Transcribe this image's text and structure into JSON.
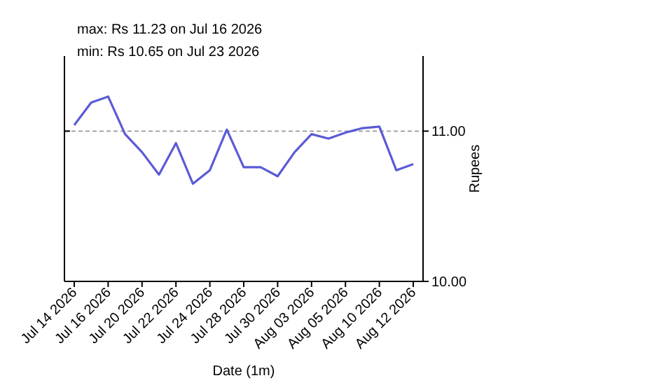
{
  "chart_data": {
    "type": "line",
    "title": "max: Rs 11.23 on Jul 16 2026",
    "subtitle": "min: Rs 10.65 on Jul 23 2026",
    "xlabel": "Date (1m)",
    "ylabel": "Rupees",
    "categories": [
      "Jul 14 2026",
      null,
      "Jul 16 2026",
      null,
      "Jul 20 2026",
      null,
      "Jul 22 2026",
      null,
      "Jul 24 2026",
      null,
      "Jul 28 2026",
      null,
      "Jul 30 2026",
      null,
      "Aug 03 2026",
      null,
      "Aug 05 2026",
      null,
      "Aug 10 2026",
      null,
      "Aug 12 2026"
    ],
    "series": [
      {
        "color": "#5b5bd6",
        "values": [
          11.04,
          11.19,
          11.23,
          10.98,
          10.86,
          10.71,
          10.92,
          10.65,
          10.74,
          11.01,
          10.76,
          10.76,
          10.7,
          10.86,
          10.98,
          10.95,
          10.99,
          11.02,
          11.03,
          10.74,
          10.78
        ]
      }
    ],
    "ylim": [
      10,
      11.5
    ],
    "yticks": [
      {
        "value": 10,
        "label": "10.00"
      },
      {
        "value": 11,
        "label": "11.00"
      }
    ],
    "ref_lines": [
      {
        "axis": "y",
        "value": 11,
        "color": "#999999",
        "line_style": "dashed"
      }
    ]
  }
}
